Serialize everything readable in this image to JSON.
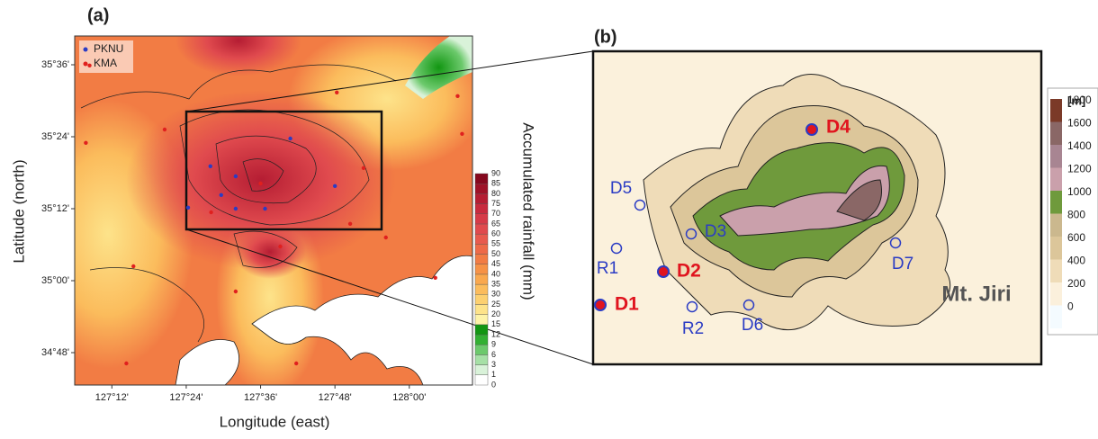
{
  "chart_data": [
    {
      "type": "scatter-map",
      "panel_label": "(a)",
      "xlabel": "Longitude (east)",
      "ylabel": "Latitude (north)",
      "xlim": [
        127.1,
        128.17
      ],
      "ylim": [
        34.71,
        35.68
      ],
      "xticks": [
        {
          "value": 127.2,
          "label": "127°12'"
        },
        {
          "value": 127.4,
          "label": "127°24'"
        },
        {
          "value": 127.6,
          "label": "127°36'"
        },
        {
          "value": 127.8,
          "label": "127°48'"
        },
        {
          "value": 128.0,
          "label": "128°00'"
        }
      ],
      "yticks": [
        {
          "value": 35.6,
          "label": "35°36'"
        },
        {
          "value": 35.4,
          "label": "35°24'"
        },
        {
          "value": 35.2,
          "label": "35°12'"
        },
        {
          "value": 35.0,
          "label": "35°00'"
        },
        {
          "value": 34.8,
          "label": "34°48'"
        }
      ],
      "series": [
        {
          "name": "PKNU",
          "color": "#2b3cc4",
          "x": [
            127.465,
            127.494,
            127.533,
            127.533,
            127.612,
            127.68,
            127.8,
            127.405
          ],
          "values": [
            35.318,
            35.238,
            35.29,
            35.2,
            35.2,
            35.395,
            35.263,
            35.203
          ]
        },
        {
          "name": "KMA",
          "color": "#e0201e",
          "x": [
            127.14,
            127.342,
            127.805,
            128.13,
            127.13,
            127.6,
            127.877,
            128.142,
            127.467,
            127.841,
            127.258,
            127.653,
            127.937,
            127.533,
            128.07,
            127.239,
            127.696
          ],
          "values": [
            35.598,
            35.42,
            35.523,
            35.513,
            35.383,
            35.27,
            35.313,
            35.408,
            35.19,
            35.158,
            35.04,
            35.095,
            35.12,
            34.97,
            35.008,
            34.77,
            34.77
          ]
        }
      ],
      "colorbar": {
        "label": "Accumulated rainfall (mm)",
        "levels": [
          0,
          1,
          3,
          6,
          9,
          12,
          15,
          20,
          25,
          30,
          35,
          40,
          45,
          50,
          55,
          60,
          65,
          70,
          75,
          80,
          85,
          90
        ],
        "colors": [
          "#ffffff",
          "#d9f2d9",
          "#a6e0a6",
          "#6cc96c",
          "#33b033",
          "#129612",
          "#fdf3a8",
          "#fde38a",
          "#fcd070",
          "#fbbc5c",
          "#f9a84e",
          "#f69246",
          "#f27c44",
          "#ee6a48",
          "#e85a4e",
          "#e04a4e",
          "#d63a48",
          "#c82a3e",
          "#b51d33",
          "#9e1228",
          "#85081e"
        ]
      }
    },
    {
      "type": "site-map",
      "panel_label": "(b)",
      "annotation": "Mt. Jiri",
      "sites": [
        {
          "label": "D1",
          "color": "#e0141e"
        },
        {
          "label": "D2",
          "color": "#e0141e"
        },
        {
          "label": "D4",
          "color": "#e0141e"
        },
        {
          "label": "D5",
          "color": "#2b3cc4"
        },
        {
          "label": "R1",
          "color": "#2b3cc4"
        },
        {
          "label": "R2",
          "color": "#2b3cc4"
        },
        {
          "label": "D6",
          "color": "#2b3cc4"
        },
        {
          "label": "D3",
          "color": "#2b3cc4"
        },
        {
          "label": "D7",
          "color": "#2b3cc4"
        }
      ],
      "colorbar": {
        "label": "[m]",
        "levels": [
          0,
          200,
          400,
          600,
          800,
          1000,
          1200,
          1400,
          1600,
          1800
        ],
        "colors": [
          "#f4fbff",
          "#fbf0dc",
          "#efdcb8",
          "#dcc69a",
          "#cbb88e",
          "#6f9a3c",
          "#caa0ab",
          "#a88592",
          "#8a6766",
          "#7b3a28"
        ]
      }
    }
  ]
}
